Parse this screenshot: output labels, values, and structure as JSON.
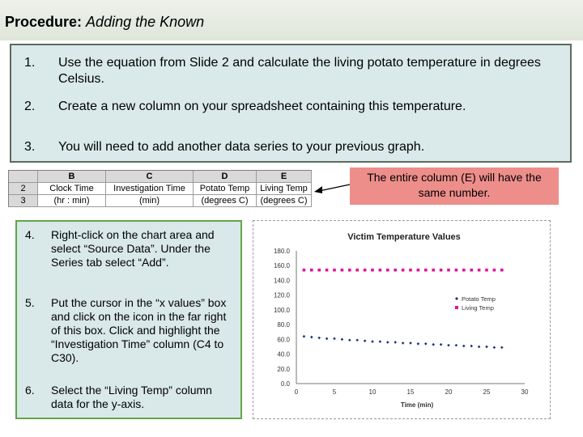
{
  "header": {
    "title_bold": "Procedure:",
    "title_italic": "Adding the Known"
  },
  "steps_top": [
    {
      "num": "1.",
      "text": "Use the equation from Slide 2 and calculate the living potato temperature in degrees Celsius."
    },
    {
      "num": "2.",
      "text": "Create a new column on your spreadsheet containing this temperature."
    },
    {
      "num": "3.",
      "text": "You will need to add another data series to your previous graph."
    }
  ],
  "spreadsheet": {
    "col_headers": [
      "",
      "B",
      "C",
      "D",
      "E"
    ],
    "rows": [
      [
        "2",
        "Clock Time",
        "Investigation Time",
        "Potato Temp",
        "Living Temp"
      ],
      [
        "3",
        "(hr : min)",
        "(min)",
        "(degrees C)",
        "(degrees C)"
      ]
    ]
  },
  "callout": {
    "text": "The entire column (E) will have the same number."
  },
  "steps_left": [
    {
      "num": "4.",
      "text": "Right-click on the chart area and select “Source Data”. Under the Series tab select “Add”."
    },
    {
      "num": "5.",
      "text": "Put the cursor in the “x values” box and click on the icon in the far right of this box. Click and highlight the “Investigation Time” column (C4 to C30)."
    },
    {
      "num": "6.",
      "text": "Select the “Living Temp” column data for the y-axis."
    }
  ],
  "chart_data": {
    "type": "scatter",
    "title": "Victim Temperature Values",
    "xlabel": "Time (min)",
    "ylabel": "",
    "xlim": [
      0,
      30
    ],
    "ylim": [
      0,
      180
    ],
    "x_ticks": [
      "0",
      "5",
      "10",
      "15",
      "20",
      "25",
      "30"
    ],
    "y_ticks": [
      "0.0",
      "20.0",
      "40.0",
      "60.0",
      "80.0",
      "100.0",
      "120.0",
      "140.0",
      "160.0",
      "180.0"
    ],
    "grid": false,
    "legend": "right",
    "series": [
      {
        "name": "Potato Temp",
        "color": "#1f2f7a",
        "x": [
          1,
          2,
          3,
          4,
          5,
          6,
          7,
          8,
          9,
          10,
          11,
          12,
          13,
          14,
          15,
          16,
          17,
          18,
          19,
          20,
          21,
          22,
          23,
          24,
          25,
          26,
          27
        ],
        "y": [
          64,
          63,
          62,
          61,
          61,
          60,
          59,
          59,
          58,
          57,
          57,
          56,
          56,
          55,
          55,
          54,
          54,
          53,
          53,
          52,
          52,
          51,
          51,
          50,
          50,
          49,
          49
        ]
      },
      {
        "name": "Living Temp",
        "color": "#e0139b",
        "x": [
          1,
          2,
          3,
          4,
          5,
          6,
          7,
          8,
          9,
          10,
          11,
          12,
          13,
          14,
          15,
          16,
          17,
          18,
          19,
          20,
          21,
          22,
          23,
          24,
          25,
          26,
          27
        ],
        "y": [
          154,
          154,
          154,
          154,
          154,
          154,
          154,
          154,
          154,
          154,
          154,
          154,
          154,
          154,
          154,
          154,
          154,
          154,
          154,
          154,
          154,
          154,
          154,
          154,
          154,
          154,
          154
        ]
      }
    ]
  }
}
